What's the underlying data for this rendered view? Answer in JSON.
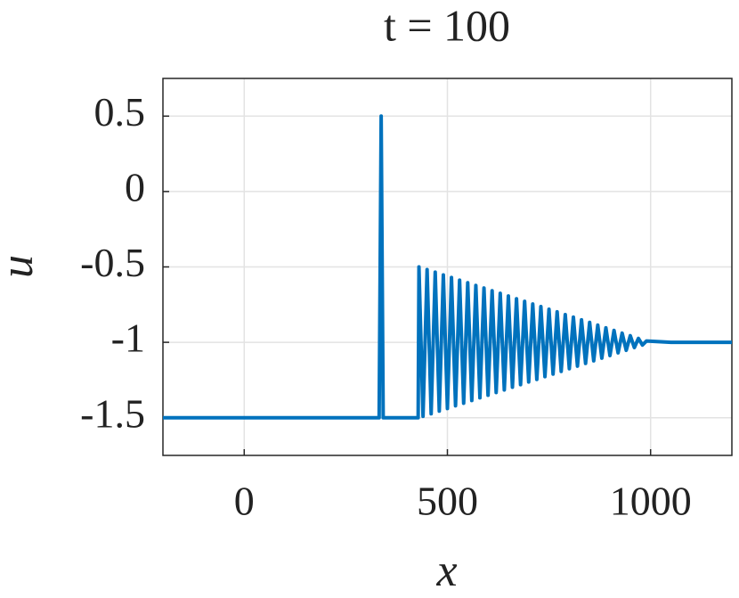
{
  "chart_data": {
    "type": "line",
    "title": "t = 100",
    "x_label": "x",
    "y_label": "u",
    "xlim": [
      -200,
      1200
    ],
    "ylim": [
      -1.75,
      0.75
    ],
    "xticks": [
      0,
      500,
      1000
    ],
    "yticks": [
      -1.5,
      -1,
      -0.5,
      0,
      0.5
    ],
    "grid": true,
    "series": [
      {
        "name": "u",
        "color": "#0072bd",
        "x": [
          -200,
          332,
          337,
          342,
          428,
          430,
          440,
          450,
          460,
          470,
          480,
          490,
          500,
          510,
          520,
          530,
          540,
          550,
          560,
          570,
          580,
          590,
          600,
          610,
          620,
          630,
          640,
          650,
          660,
          670,
          680,
          690,
          700,
          710,
          720,
          730,
          740,
          750,
          760,
          770,
          780,
          790,
          800,
          810,
          820,
          830,
          840,
          850,
          860,
          870,
          880,
          890,
          900,
          910,
          920,
          930,
          940,
          950,
          960,
          970,
          980,
          990,
          1050,
          1200
        ],
        "values": [
          -1.5,
          -1.5,
          0.5,
          -1.5,
          -1.5,
          -0.5,
          -1.491,
          -0.518,
          -1.474,
          -0.535,
          -1.456,
          -0.553,
          -1.439,
          -0.57,
          -1.421,
          -0.588,
          -1.404,
          -0.605,
          -1.386,
          -0.623,
          -1.368,
          -0.64,
          -1.351,
          -0.658,
          -1.333,
          -0.675,
          -1.316,
          -0.693,
          -1.298,
          -0.711,
          -1.281,
          -0.728,
          -1.263,
          -0.746,
          -1.246,
          -0.763,
          -1.228,
          -0.781,
          -1.211,
          -0.798,
          -1.193,
          -0.816,
          -1.175,
          -0.833,
          -1.158,
          -0.851,
          -1.14,
          -0.868,
          -1.123,
          -0.886,
          -1.105,
          -0.904,
          -1.088,
          -0.921,
          -1.07,
          -0.939,
          -1.053,
          -0.956,
          -1.035,
          -0.974,
          -1.018,
          -0.991,
          -1,
          -1
        ]
      }
    ]
  }
}
